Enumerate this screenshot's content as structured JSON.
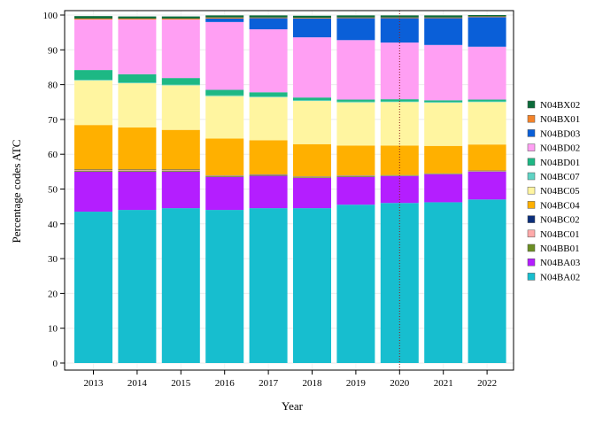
{
  "chart_data": {
    "type": "bar",
    "stacked": true,
    "xlabel": "Year",
    "ylabel": "Percentage codes ATC",
    "ylim": [
      0,
      100
    ],
    "yticks": [
      0,
      10,
      20,
      30,
      40,
      50,
      60,
      70,
      80,
      90,
      100
    ],
    "grid": true,
    "legend_position": "right",
    "reference_line": {
      "x": "2020",
      "style": "dotted"
    },
    "categories": [
      "2013",
      "2014",
      "2015",
      "2016",
      "2017",
      "2018",
      "2019",
      "2020",
      "2021",
      "2022"
    ],
    "series": [
      {
        "name": "N04BA02",
        "color": "#17becf",
        "values": [
          43.5,
          44.0,
          44.5,
          44.0,
          44.5,
          44.5,
          45.5,
          46.0,
          46.2,
          47.0
        ]
      },
      {
        "name": "N04BA03",
        "color": "#b41eff",
        "values": [
          11.5,
          11.0,
          10.5,
          9.5,
          9.3,
          8.7,
          8.0,
          7.7,
          8.0,
          8.0
        ]
      },
      {
        "name": "N04BB01",
        "color": "#6b8e23",
        "values": [
          0.3,
          0.3,
          0.3,
          0.2,
          0.2,
          0.2,
          0.2,
          0.1,
          0.1,
          0.1
        ]
      },
      {
        "name": "N04BC01",
        "color": "#ffaaaa",
        "values": [
          0.2,
          0.2,
          0.2,
          0.1,
          0.1,
          0.1,
          0.1,
          0.1,
          0.1,
          0.1
        ]
      },
      {
        "name": "N04BC02",
        "color": "#0b2e7a",
        "values": [
          0.1,
          0.1,
          0.1,
          0.1,
          0.1,
          0.1,
          0.1,
          0.1,
          0.1,
          0.1
        ]
      },
      {
        "name": "N04BC04",
        "color": "#ffb000",
        "values": [
          12.8,
          12.1,
          11.4,
          10.6,
          9.8,
          9.3,
          8.6,
          8.5,
          7.9,
          7.5
        ]
      },
      {
        "name": "N04BC05",
        "color": "#fff5a0",
        "values": [
          12.8,
          12.7,
          12.8,
          12.2,
          12.4,
          12.4,
          12.4,
          12.5,
          12.4,
          12.2
        ]
      },
      {
        "name": "N04BC07",
        "color": "#5fd3c4",
        "values": [
          0.2,
          0.2,
          0.2,
          0.2,
          0.2,
          0.2,
          0.2,
          0.2,
          0.2,
          0.2
        ]
      },
      {
        "name": "N04BD01",
        "color": "#1db884",
        "values": [
          2.8,
          2.4,
          1.9,
          1.6,
          1.2,
          0.8,
          0.6,
          0.6,
          0.5,
          0.5
        ]
      },
      {
        "name": "N04BD02",
        "color": "#ff9ff3",
        "values": [
          14.5,
          15.7,
          16.8,
          19.5,
          18.1,
          17.3,
          17.1,
          16.3,
          15.9,
          15.2
        ]
      },
      {
        "name": "N04BD03",
        "color": "#0a5fd8",
        "values": [
          0.0,
          0.0,
          0.0,
          1.0,
          3.2,
          5.4,
          6.3,
          7.0,
          7.7,
          8.5
        ]
      },
      {
        "name": "N04BX01",
        "color": "#f4832a",
        "values": [
          0.3,
          0.3,
          0.3,
          0.3,
          0.2,
          0.2,
          0.2,
          0.2,
          0.2,
          0.2
        ]
      },
      {
        "name": "N04BX02",
        "color": "#0c6b3a",
        "values": [
          0.7,
          0.6,
          0.6,
          0.6,
          0.6,
          0.6,
          0.6,
          0.6,
          0.6,
          0.4
        ]
      }
    ]
  }
}
